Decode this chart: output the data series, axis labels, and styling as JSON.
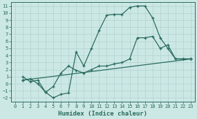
{
  "xlabel": "Humidex (Indice chaleur)",
  "bg_color": "#cce8e5",
  "grid_color": "#b5d5d2",
  "line_color": "#2a6b5e",
  "xlim": [
    -0.5,
    23.5
  ],
  "ylim": [
    -2.5,
    11.5
  ],
  "xticks": [
    0,
    1,
    2,
    3,
    4,
    5,
    6,
    7,
    8,
    9,
    10,
    11,
    12,
    13,
    14,
    15,
    16,
    17,
    18,
    19,
    20,
    21,
    22,
    23
  ],
  "yticks": [
    -2,
    -1,
    0,
    1,
    2,
    3,
    4,
    5,
    6,
    7,
    8,
    9,
    10,
    11
  ],
  "line1_x": [
    1,
    2,
    3,
    4,
    5,
    6,
    7,
    8,
    9,
    10,
    11,
    12,
    13,
    14,
    15,
    16,
    17,
    18,
    19,
    20,
    21,
    22,
    23
  ],
  "line1_y": [
    1.0,
    0.3,
    0.5,
    -1.2,
    -2.0,
    -1.5,
    -1.3,
    4.5,
    2.5,
    5.0,
    7.5,
    9.7,
    9.8,
    9.8,
    10.8,
    11.0,
    11.0,
    9.3,
    6.5,
    5.0,
    3.5,
    3.5,
    3.5
  ],
  "line2_x": [
    1,
    2,
    3,
    4,
    5,
    6,
    7,
    8,
    9,
    10,
    11,
    12,
    13,
    14,
    15,
    16,
    17,
    18,
    19,
    20,
    21,
    22,
    23
  ],
  "line2_y": [
    0.5,
    0.7,
    0.0,
    -1.2,
    -0.4,
    1.5,
    2.5,
    1.9,
    1.5,
    2.0,
    2.5,
    2.5,
    2.8,
    3.0,
    3.5,
    6.5,
    6.5,
    6.7,
    5.0,
    5.5,
    3.5,
    3.5,
    3.5
  ],
  "line3_x": [
    1,
    23
  ],
  "line3_y": [
    0.5,
    3.5
  ]
}
